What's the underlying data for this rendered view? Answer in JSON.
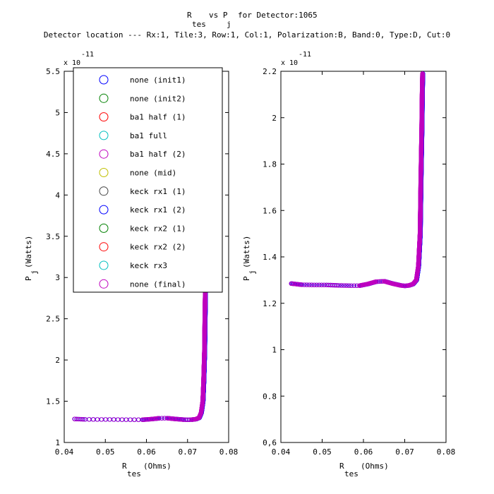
{
  "figure": {
    "title_line1_a": "R",
    "title_line1_b": "vs P",
    "title_line1_c": "for Detector:1065",
    "title_sub_a": "tes",
    "title_sub_b": "j",
    "title_line2": "Detector location --- Rx:1, Tile:3, Row:1, Col:1, Polarization:B, Band:0, Type:D, Cut:0"
  },
  "chart_data": [
    {
      "type": "scatter",
      "name": "left-panel",
      "xlabel_main": "R",
      "xlabel_sub": "tes",
      "xlabel_unit": "(Ohms)",
      "ylabel_main": "P",
      "ylabel_sub": "j",
      "ylabel_unit": "(Watts)",
      "multiplier_base": "x 10",
      "multiplier_exp": "-11",
      "xlim": [
        0.04,
        0.08
      ],
      "ylim": [
        1,
        5.5
      ],
      "x_ticks": [
        0.04,
        0.05,
        0.06,
        0.07,
        0.08
      ],
      "x_tick_labels": [
        "0.04",
        "0.05",
        "0.06",
        "0.07",
        "0.08"
      ],
      "y_ticks": [
        1,
        1.5,
        2,
        2.5,
        3,
        3.5,
        4,
        4.5,
        5,
        5.5
      ],
      "y_tick_labels": [
        "1",
        "1.5",
        "2",
        "2.5",
        "3",
        "3.5",
        "4",
        "4.5",
        "5",
        "5.5"
      ],
      "grid": false,
      "legend_position": "top-left",
      "legend": [
        {
          "label": "none (init1)",
          "color": "#0000ff"
        },
        {
          "label": "none (init2)",
          "color": "#008000"
        },
        {
          "label": "ba1 half (1)",
          "color": "#ff0000"
        },
        {
          "label": "ba1 full",
          "color": "#00bfbf"
        },
        {
          "label": "ba1 half (2)",
          "color": "#bf00bf"
        },
        {
          "label": "none (mid)",
          "color": "#bfbf00"
        },
        {
          "label": "keck rx1 (1)",
          "color": "#404040"
        },
        {
          "label": "keck rx1 (2)",
          "color": "#0000ff"
        },
        {
          "label": "keck rx2 (1)",
          "color": "#008000"
        },
        {
          "label": "keck rx2 (2)",
          "color": "#ff0000"
        },
        {
          "label": "keck rx3",
          "color": "#00bfbf"
        },
        {
          "label": "none (final)",
          "color": "#bf00bf"
        }
      ],
      "curve": {
        "x": [
          0.0425,
          0.045,
          0.048,
          0.051,
          0.054,
          0.057,
          0.059,
          0.061,
          0.063,
          0.065,
          0.067,
          0.069,
          0.07,
          0.071,
          0.072,
          0.0728,
          0.0733,
          0.0737,
          0.0739,
          0.0741,
          0.0742,
          0.0743
        ],
        "y": [
          1.285,
          1.28,
          1.279,
          1.279,
          1.277,
          1.276,
          1.276,
          1.283,
          1.293,
          1.295,
          1.285,
          1.277,
          1.275,
          1.277,
          1.283,
          1.3,
          1.36,
          1.5,
          1.75,
          2.1,
          2.5,
          2.85
        ]
      }
    },
    {
      "type": "scatter",
      "name": "right-panel",
      "xlabel_main": "R",
      "xlabel_sub": "tes",
      "xlabel_unit": "(Ohms)",
      "ylabel_main": "P",
      "ylabel_sub": "j",
      "ylabel_unit": "(Watts)",
      "multiplier_base": "x 10",
      "multiplier_exp": "-11",
      "xlim": [
        0.04,
        0.08
      ],
      "ylim": [
        0.6,
        2.2
      ],
      "x_ticks": [
        0.04,
        0.05,
        0.06,
        0.07,
        0.08
      ],
      "x_tick_labels": [
        "0.04",
        "0.05",
        "0.06",
        "0.07",
        "0.08"
      ],
      "y_ticks": [
        0.6,
        0.8,
        1.0,
        1.2,
        1.4,
        1.6,
        1.8,
        2.0,
        2.2
      ],
      "y_tick_labels": [
        "0,6",
        "0.8",
        "1",
        "1.2",
        "1.4",
        "1.6",
        "1.8",
        "2",
        "2.2"
      ],
      "grid": false,
      "curve": {
        "x": [
          0.0425,
          0.045,
          0.048,
          0.051,
          0.054,
          0.057,
          0.059,
          0.061,
          0.063,
          0.065,
          0.067,
          0.069,
          0.07,
          0.071,
          0.072,
          0.0728,
          0.0733,
          0.0737,
          0.0739,
          0.0741,
          0.0742,
          0.0743
        ],
        "y": [
          1.285,
          1.28,
          1.279,
          1.279,
          1.277,
          1.276,
          1.276,
          1.283,
          1.293,
          1.295,
          1.285,
          1.277,
          1.275,
          1.277,
          1.283,
          1.3,
          1.36,
          1.5,
          1.75,
          1.95,
          2.1,
          2.19
        ]
      }
    }
  ]
}
